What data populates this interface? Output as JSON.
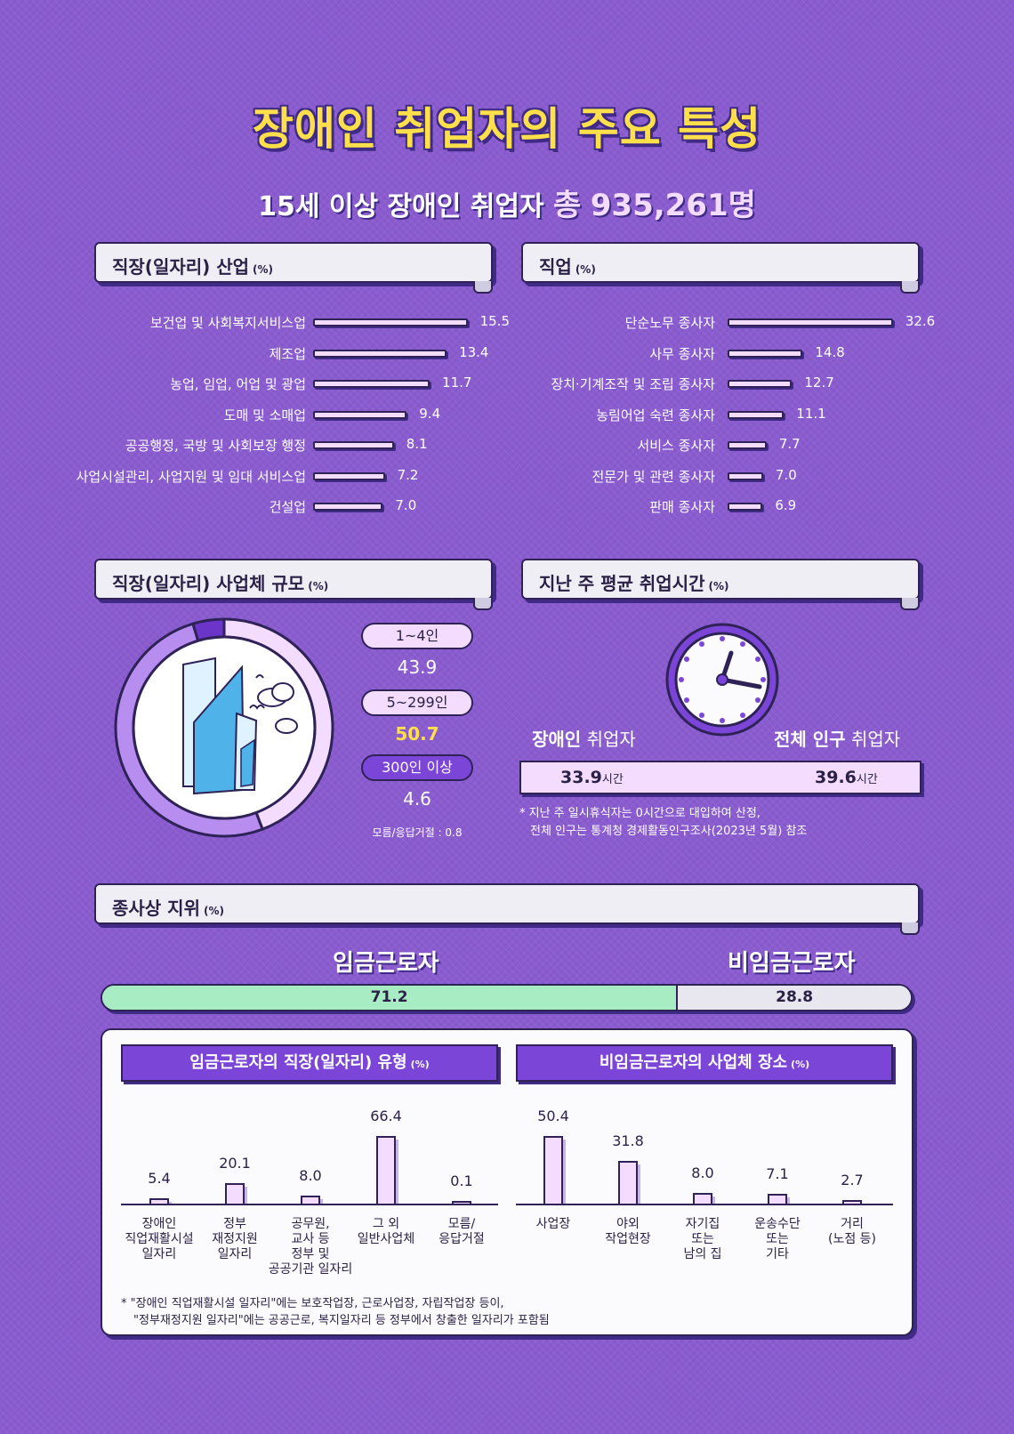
{
  "title": "장애인 취업자의 주요 특성",
  "subtitle": {
    "prefix": "15세 이상 장애인 취업자",
    "total_label": "총",
    "total": "935,261",
    "unit": "명"
  },
  "colors": {
    "background": "#8a5cd0",
    "accent": "#7b45d8",
    "title": "#ffe04a",
    "bar_fill": "#f4dcff",
    "wage_fill": "#a8ecc3",
    "nonwage_fill": "#e8e6ee"
  },
  "sections": {
    "industry": {
      "title": "직장(일자리) 산업",
      "unit": "(%)"
    },
    "occupation": {
      "title": "직업",
      "unit": "(%)"
    },
    "size": {
      "title": "직장(일자리) 사업체 규모",
      "unit": "(%)"
    },
    "hours": {
      "title": "지난 주 평균 취업시간",
      "unit": "(%)"
    },
    "status": {
      "title": "종사상 지위",
      "unit": "(%)"
    }
  },
  "chart_data": [
    {
      "type": "bar",
      "orientation": "horizontal",
      "title": "직장(일자리) 산업",
      "unit": "(%)",
      "categories": [
        "보건업 및 사회복지서비스업",
        "제조업",
        "농업, 임업, 어업 및 광업",
        "도매 및 소매업",
        "공공행정, 국방 및 사회보장 행정",
        "사업시설관리, 사업지원 및 임대 서비스업",
        "건설업"
      ],
      "values": [
        15.5,
        13.4,
        11.7,
        9.4,
        8.1,
        7.2,
        7.0
      ],
      "labels": [
        "15.5",
        "13.4",
        "11.7",
        "9.4",
        "8.1",
        "7.2",
        "7.0"
      ]
    },
    {
      "type": "bar",
      "orientation": "horizontal",
      "title": "직업",
      "unit": "(%)",
      "categories": [
        "단순노무 종사자",
        "사무 종사자",
        "장치·기계조작 및 조립 종사자",
        "농림어업 숙련 종사자",
        "서비스 종사자",
        "전문가 및 관련 종사자",
        "판매 종사자"
      ],
      "values": [
        32.6,
        14.8,
        12.7,
        11.1,
        7.7,
        7.0,
        6.9
      ],
      "labels": [
        "32.6",
        "14.8",
        "12.7",
        "11.1",
        "7.7",
        "7.0",
        "6.9"
      ]
    },
    {
      "type": "pie",
      "title": "직장(일자리) 사업체 규모",
      "unit": "(%)",
      "categories": [
        "1~4인",
        "5~299인",
        "300인 이상"
      ],
      "values": [
        43.9,
        50.7,
        4.6
      ],
      "labels": [
        "43.9",
        "50.7",
        "4.6"
      ],
      "colors": [
        "#f4dcff",
        "#b78df0",
        "#6a35c8"
      ],
      "note": "모름/응답거절 : 0.8"
    },
    {
      "type": "bar",
      "title": "지난 주 평균 취업시간",
      "categories": [
        "장애인 취업자",
        "전체 인구 취업자"
      ],
      "values": [
        33.9,
        39.6
      ],
      "labels": [
        "33.9",
        "39.6"
      ],
      "unit": "시간",
      "group_labels": [
        {
          "strong": "장애인",
          "rest": "취업자"
        },
        {
          "strong": "전체 인구",
          "rest": "취업자"
        }
      ],
      "notes": [
        "* 지난 주 일시휴식자는 0시간으로 대입하여 산정,",
        "전체 인구는 통계청 경제활동인구조사(2023년 5월) 참조"
      ]
    },
    {
      "type": "bar",
      "orientation": "stacked-horizontal",
      "title": "종사상 지위",
      "categories": [
        "임금근로자",
        "비임금근로자"
      ],
      "values": [
        71.2,
        28.8
      ],
      "labels": [
        "71.2",
        "28.8"
      ]
    },
    {
      "type": "bar",
      "title": "임금근로자의 직장(일자리) 유형",
      "unit": "(%)",
      "categories": [
        [
          "장애인",
          "직업재활시설",
          "일자리"
        ],
        [
          "정부",
          "재정지원",
          "일자리"
        ],
        [
          "공무원,",
          "교사 등",
          "정부 및",
          "공공기관 일자리"
        ],
        [
          "그 외",
          "일반사업체"
        ],
        [
          "모름/",
          "응답거절"
        ]
      ],
      "values": [
        5.4,
        20.1,
        8.0,
        66.4,
        0.1
      ],
      "labels": [
        "5.4",
        "20.1",
        "8.0",
        "66.4",
        "0.1"
      ],
      "ylim": [
        0,
        66.4
      ]
    },
    {
      "type": "bar",
      "title": "비임금근로자의 사업체 장소",
      "unit": "(%)",
      "categories": [
        [
          "사업장"
        ],
        [
          "야외",
          "작업현장"
        ],
        [
          "자기집",
          "또는",
          "남의 집"
        ],
        [
          "운송수단",
          "또는",
          "기타"
        ],
        [
          "거리",
          "(노점 등)"
        ]
      ],
      "values": [
        50.4,
        31.8,
        8.0,
        7.1,
        2.7
      ],
      "labels": [
        "50.4",
        "31.8",
        "8.0",
        "7.1",
        "2.7"
      ],
      "ylim": [
        0,
        50.4
      ]
    }
  ],
  "footnotes": [
    "* \"장애인 직업재활시설 일자리\"에는 보호작업장, 근로사업장, 자립작업장 등이,",
    "\"정부재정지원 일자리\"에는 공공근로, 복지일자리 등 정부에서 창출한 일자리가 포함됨"
  ]
}
